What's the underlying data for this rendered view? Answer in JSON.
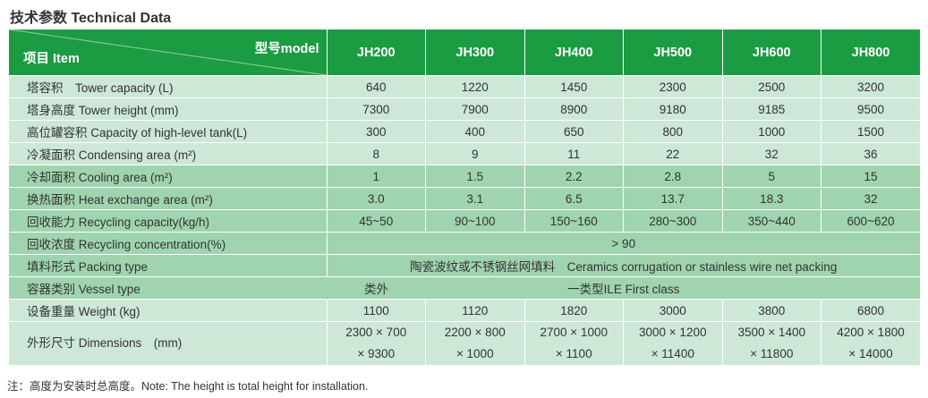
{
  "title": "技术参数 Technical Data",
  "header": {
    "item": "项目 Item",
    "model": "型号model",
    "models": [
      "JH200",
      "JH300",
      "JH400",
      "JH500",
      "JH600",
      "JH800"
    ]
  },
  "rows": [
    {
      "label": "塔容积　Tower capacity (L)",
      "values": [
        "640",
        "1220",
        "1450",
        "2300",
        "2500",
        "3200"
      ]
    },
    {
      "label": "塔身高度 Tower height (mm)",
      "values": [
        "7300",
        "7900",
        "8900",
        "9180",
        "9185",
        "9500"
      ]
    },
    {
      "label": "高位罐容积 Capacity of high-level tank(L)",
      "values": [
        "300",
        "400",
        "650",
        "800",
        "1000",
        "1500"
      ]
    },
    {
      "label": "冷凝面积 Condensing area (m²)",
      "values": [
        "8",
        "9",
        "11",
        "22",
        "32",
        "36"
      ]
    },
    {
      "label": "冷却面积 Cooling area (m²)",
      "values": [
        "1",
        "1.5",
        "2.2",
        "2.8",
        "5",
        "15"
      ]
    },
    {
      "label": "换热面积 Heat exchange area (m²)",
      "values": [
        "3.0",
        "3.1",
        "6.5",
        "13.7",
        "18.3",
        "32"
      ]
    },
    {
      "label": "回收能力 Recycling capacity(kg/h)",
      "values": [
        "45~50",
        "90~100",
        "150~160",
        "280~300",
        "350~440",
        "600~620"
      ]
    },
    {
      "label": "回收浓度 Recycling concentration(%)",
      "merged": "> 90"
    },
    {
      "label": "填料形式 Packing type",
      "merged": "陶瓷波纹或不锈钢丝网填料　Ceramics corrugation or stainless wire net packing"
    },
    {
      "label": "容器类别 Vessel type",
      "first": "类外",
      "merged": "一类型ILE First class"
    },
    {
      "label": "设备重量 Weight (kg)",
      "values": [
        "1100",
        "1120",
        "1820",
        "3000",
        "3800",
        "6800"
      ]
    },
    {
      "label": "外形尺寸 Dimensions　(mm)",
      "values": [
        [
          "2300 × 700",
          "× 9300"
        ],
        [
          "2200 × 800",
          "× 1000"
        ],
        [
          "2700 × 1000",
          "× 1100"
        ],
        [
          "3000 × 1200",
          "× 11400"
        ],
        [
          "3500 × 1400",
          "× 11800"
        ],
        [
          "4200 × 1800",
          "× 14000"
        ]
      ]
    }
  ],
  "note": "注：高度为安装时总高度。Note: The height is total height for installation.",
  "colors": {
    "header": "#1b9b42",
    "light_row": "#cde8d6",
    "dark_row": "#9fd4ae"
  }
}
